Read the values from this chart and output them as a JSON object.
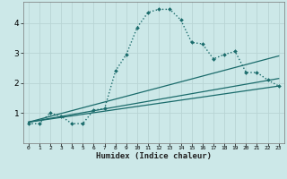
{
  "xlabel": "Humidex (Indice chaleur)",
  "bg_color": "#cce8e8",
  "grid_color": "#b8d4d4",
  "line_color": "#1a6b6b",
  "xlim": [
    -0.5,
    23.5
  ],
  "ylim": [
    0,
    4.7
  ],
  "yticks": [
    1,
    2,
    3,
    4
  ],
  "xticks": [
    0,
    1,
    2,
    3,
    4,
    5,
    6,
    7,
    8,
    9,
    10,
    11,
    12,
    13,
    14,
    15,
    16,
    17,
    18,
    19,
    20,
    21,
    22,
    23
  ],
  "series": [
    {
      "x": [
        0,
        1,
        2,
        3,
        4,
        5,
        6,
        7,
        8,
        9,
        10,
        11,
        12,
        13,
        14,
        15,
        16,
        17,
        18,
        19,
        20,
        21,
        22,
        23
      ],
      "y": [
        0.65,
        0.65,
        1.0,
        0.9,
        0.65,
        0.65,
        1.1,
        1.15,
        2.4,
        2.95,
        3.85,
        4.35,
        4.45,
        4.45,
        4.1,
        3.35,
        3.3,
        2.8,
        2.95,
        3.05,
        2.35,
        2.35,
        2.1,
        1.9
      ],
      "dotted": true,
      "marker": "D",
      "markersize": 2.0
    },
    {
      "x": [
        0,
        23
      ],
      "y": [
        0.7,
        2.9
      ],
      "dotted": false,
      "marker": null
    },
    {
      "x": [
        0,
        23
      ],
      "y": [
        0.7,
        1.9
      ],
      "dotted": false,
      "marker": null
    },
    {
      "x": [
        0,
        23
      ],
      "y": [
        0.7,
        2.15
      ],
      "dotted": false,
      "marker": null
    }
  ]
}
